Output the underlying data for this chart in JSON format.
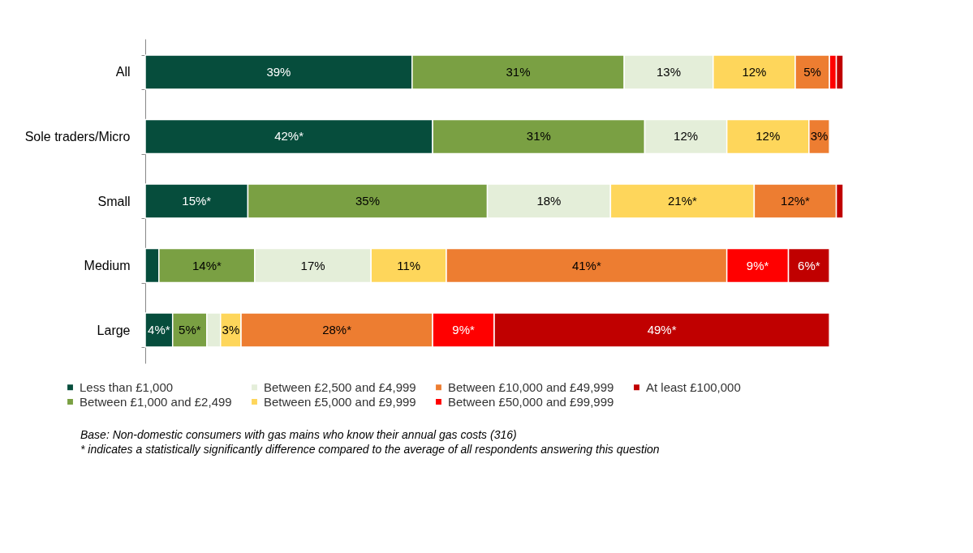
{
  "chart_data": {
    "type": "bar",
    "orientation": "horizontal",
    "stacked": true,
    "xlim": [
      0,
      102
    ],
    "tick_labels": "y",
    "grid": false,
    "legend": "bottom",
    "categories": [
      "All",
      "Sole traders/Micro",
      "Small",
      "Medium",
      "Large"
    ],
    "series": [
      {
        "name": "Less than £1,000",
        "color": "#064d3c",
        "values": [
          39,
          42,
          15,
          2,
          4
        ],
        "value_labels": [
          "39%",
          "42%*",
          "15%*",
          null,
          "4%*"
        ]
      },
      {
        "name": "Between £1,000 and £2,499",
        "color": "#7aa043",
        "values": [
          31,
          31,
          35,
          14,
          5
        ],
        "value_labels": [
          "31%",
          "31%",
          "35%",
          "14%*",
          "5%*"
        ]
      },
      {
        "name": "Between £2,500 and £4,999",
        "color": "#e4eed9",
        "values": [
          13,
          12,
          18,
          17,
          2
        ],
        "value_labels": [
          "13%",
          "12%",
          "18%",
          "17%",
          null
        ]
      },
      {
        "name": "Between £5,000 and £9,999",
        "color": "#fed65b",
        "values": [
          12,
          12,
          21,
          11,
          3
        ],
        "value_labels": [
          "12%",
          "12%",
          "21%*",
          "11%",
          "3%"
        ]
      },
      {
        "name": "Between £10,000 and £49,999",
        "color": "#ed7d31",
        "values": [
          5,
          3,
          12,
          41,
          28
        ],
        "value_labels": [
          "5%",
          "3%",
          "12%*",
          "41%*",
          "28%*"
        ]
      },
      {
        "name": "Between £50,000 and £99,999",
        "color": "#ff0000",
        "values": [
          1,
          null,
          null,
          9,
          9
        ],
        "value_labels": [
          null,
          null,
          null,
          "9%*",
          "9%*"
        ]
      },
      {
        "name": "At least £100,000",
        "color": "#c00000",
        "values": [
          1,
          null,
          1,
          6,
          49
        ],
        "value_labels": [
          null,
          null,
          null,
          "6%*",
          "49%*"
        ]
      }
    ],
    "annotations": [
      "Base: Non-domestic consumers with gas mains who know their annual gas costs (316)",
      "* indicates a statistically significantly difference compared to the average of all respondents answering this question"
    ]
  }
}
